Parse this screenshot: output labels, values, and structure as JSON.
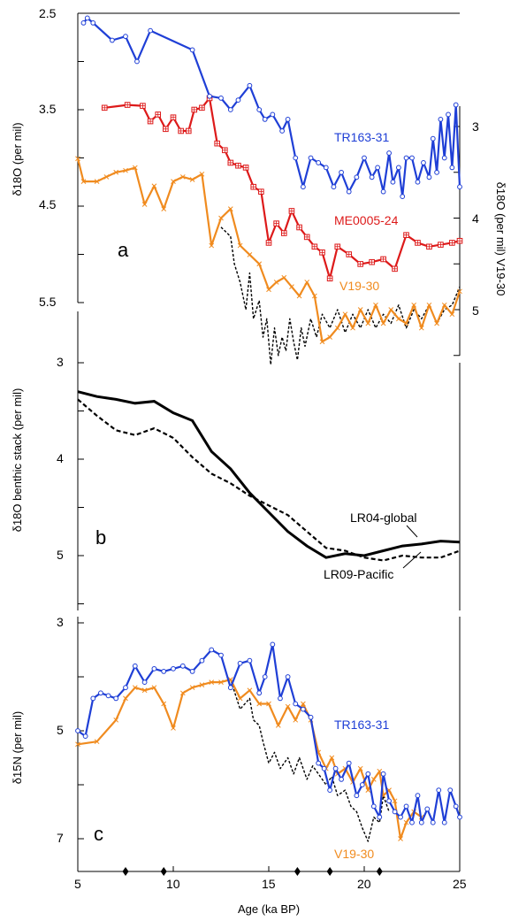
{
  "chart_data": [
    {
      "panel": "a",
      "type": "line",
      "ylabel": "δ18O (per mil)",
      "ylabel_right": "δ18O (per mil) V19-30",
      "ylim": [
        2.5,
        5.5
      ],
      "ylim_right": [
        2.5,
        5.6
      ],
      "y_inverted": true,
      "yticks": [
        "2.5",
        "3.5",
        "4.5",
        "5.5"
      ],
      "yticks_right": [
        "3",
        "4",
        "5"
      ],
      "series": [
        {
          "name": "TR163-31",
          "color": "#1f3fd6",
          "marker": "circle",
          "axis": "left",
          "x": [
            5.3,
            5.5,
            5.8,
            6.8,
            7.5,
            8.1,
            8.8,
            11.0,
            11.9,
            12.5,
            13.0,
            13.4,
            14.0,
            14.5,
            14.8,
            15.2,
            15.7,
            16.0,
            16.4,
            16.8,
            17.2,
            17.6,
            18.0,
            18.4,
            18.8,
            19.2,
            19.6,
            20.0,
            20.4,
            20.7,
            21.0,
            21.3,
            21.5,
            21.8,
            22.0,
            22.2,
            22.5,
            22.8,
            23.1,
            23.4,
            23.6,
            23.8,
            24.0,
            24.2,
            24.4,
            24.6,
            24.8,
            25.0
          ],
          "y": [
            2.6,
            2.55,
            2.6,
            2.78,
            2.74,
            3.0,
            2.68,
            2.88,
            3.36,
            3.38,
            3.5,
            3.4,
            3.25,
            3.5,
            3.6,
            3.55,
            3.72,
            3.6,
            4.0,
            4.3,
            4.0,
            4.05,
            4.1,
            4.3,
            4.15,
            4.35,
            4.2,
            4.0,
            4.2,
            4.1,
            4.35,
            3.95,
            4.25,
            4.1,
            4.4,
            4.0,
            4.0,
            4.25,
            4.05,
            4.2,
            3.8,
            4.15,
            3.6,
            4.0,
            3.55,
            4.1,
            3.45,
            4.3
          ]
        },
        {
          "name": "ME0005-24",
          "color": "#dd1a1a",
          "marker": "square",
          "axis": "left",
          "x": [
            6.4,
            7.6,
            8.4,
            8.8,
            9.2,
            9.6,
            10.0,
            10.4,
            10.8,
            11.1,
            11.5,
            11.9,
            12.3,
            12.7,
            13.0,
            13.4,
            13.8,
            14.2,
            14.6,
            15.0,
            15.4,
            15.8,
            16.2,
            16.6,
            17.0,
            17.4,
            17.8,
            18.2,
            18.6,
            19.2,
            19.8,
            20.4,
            21.0,
            21.6,
            22.2,
            22.8,
            23.4,
            24.0,
            24.6,
            25.0
          ],
          "y": [
            3.48,
            3.45,
            3.46,
            3.62,
            3.55,
            3.7,
            3.58,
            3.72,
            3.72,
            3.5,
            3.48,
            3.38,
            3.85,
            3.92,
            4.05,
            4.08,
            4.1,
            4.3,
            4.35,
            4.88,
            4.68,
            4.78,
            4.55,
            4.72,
            4.82,
            4.92,
            4.98,
            5.25,
            4.92,
            5.0,
            5.1,
            5.08,
            5.05,
            5.15,
            4.8,
            4.88,
            4.92,
            4.9,
            4.88,
            4.86
          ]
        },
        {
          "name": "V19-30",
          "color": "#f08b1f",
          "marker": "x",
          "axis": "right",
          "x": [
            5.0,
            5.3,
            6.0,
            6.5,
            7.0,
            7.5,
            8.0,
            8.5,
            9.0,
            9.5,
            10.0,
            10.5,
            11.0,
            11.5,
            12.0,
            12.5,
            13.0,
            13.5,
            14.0,
            14.5,
            15.0,
            15.4,
            15.8,
            16.2,
            16.6,
            17.0,
            17.4,
            17.8,
            18.2,
            18.6,
            19.0,
            19.4,
            19.8,
            20.2,
            20.6,
            21.0,
            21.4,
            21.8,
            22.2,
            22.6,
            23.0,
            23.4,
            23.8,
            24.2,
            24.6,
            25.0
          ],
          "y": [
            3.35,
            3.6,
            3.6,
            3.55,
            3.5,
            3.48,
            3.45,
            3.85,
            3.65,
            3.9,
            3.6,
            3.55,
            3.58,
            3.52,
            4.3,
            4.0,
            3.9,
            4.3,
            4.4,
            4.5,
            4.78,
            4.7,
            4.65,
            4.75,
            4.85,
            4.7,
            4.85,
            5.35,
            5.3,
            5.2,
            5.05,
            5.2,
            5.0,
            5.15,
            4.95,
            5.15,
            5.0,
            5.1,
            5.15,
            4.95,
            5.2,
            4.95,
            5.15,
            4.95,
            5.05,
            4.8
          ]
        },
        {
          "name": "",
          "color": "#000000",
          "marker": "none",
          "dashed": true,
          "axis": "right",
          "x": [
            12.5,
            13.0,
            13.2,
            13.5,
            13.8,
            14.0,
            14.2,
            14.5,
            14.7,
            14.9,
            15.1,
            15.3,
            15.5,
            15.7,
            15.9,
            16.1,
            16.3,
            16.5,
            16.7,
            16.9,
            17.2,
            17.5,
            17.8,
            18.2,
            18.6,
            19.0,
            19.4,
            19.8,
            20.2,
            20.6,
            21.0,
            21.4,
            21.8,
            22.2,
            22.6,
            23.0,
            23.4,
            23.8,
            24.2,
            24.6,
            25.0
          ],
          "y": [
            4.1,
            4.2,
            4.5,
            4.7,
            5.0,
            4.6,
            5.1,
            4.9,
            5.3,
            5.1,
            5.6,
            5.2,
            5.5,
            5.3,
            5.45,
            5.1,
            5.35,
            5.55,
            5.2,
            5.4,
            5.1,
            5.3,
            5.05,
            5.2,
            5.0,
            5.25,
            5.05,
            5.2,
            5.0,
            5.2,
            5.05,
            5.15,
            4.95,
            5.2,
            5.0,
            5.1,
            4.95,
            5.15,
            5.0,
            4.95,
            4.75
          ]
        }
      ],
      "labels": [
        {
          "text": "TR163-31",
          "color": "#1f3fd6"
        },
        {
          "text": "ME0005-24",
          "color": "#dd1a1a"
        },
        {
          "text": "V19-30",
          "color": "#f08b1f"
        }
      ]
    },
    {
      "panel": "b",
      "type": "line",
      "ylabel": "δ18O benthic stack (per mil)",
      "ylim": [
        3,
        5.5
      ],
      "y_inverted": true,
      "yticks": [
        "3",
        "4",
        "5"
      ],
      "series": [
        {
          "name": "LR04-global",
          "color": "#000000",
          "dashed": false,
          "x": [
            5,
            6,
            7,
            8,
            9,
            10,
            11,
            12,
            13,
            14,
            15,
            16,
            17,
            18,
            19,
            20,
            21,
            22,
            23,
            24,
            25
          ],
          "y": [
            3.3,
            3.35,
            3.38,
            3.42,
            3.4,
            3.52,
            3.6,
            3.92,
            4.1,
            4.35,
            4.55,
            4.75,
            4.9,
            5.02,
            4.98,
            5.0,
            4.95,
            4.9,
            4.88,
            4.85,
            4.86
          ]
        },
        {
          "name": "LR09-Pacific",
          "color": "#000000",
          "dashed": true,
          "x": [
            5,
            6,
            7,
            8,
            9,
            10,
            11,
            12,
            13,
            14,
            15,
            16,
            17,
            18,
            19,
            20,
            21,
            22,
            23,
            24,
            25
          ],
          "y": [
            3.38,
            3.55,
            3.7,
            3.75,
            3.68,
            3.78,
            3.98,
            4.15,
            4.25,
            4.38,
            4.48,
            4.58,
            4.75,
            4.92,
            4.95,
            5.02,
            5.05,
            5.0,
            5.02,
            5.02,
            4.95
          ]
        }
      ],
      "labels": [
        {
          "text": "LR04-global",
          "color": "#000000"
        },
        {
          "text": "LR09-Pacific",
          "color": "#000000"
        }
      ]
    },
    {
      "panel": "c",
      "type": "line",
      "ylabel": "δ15N (per mil)",
      "xlabel": "Age (ka BP)",
      "xlim": [
        5,
        25
      ],
      "xticks": [
        "5",
        "10",
        "15",
        "20",
        "25"
      ],
      "ylim": [
        2.6,
        7
      ],
      "yticks": [
        "3",
        "5",
        "7"
      ],
      "series": [
        {
          "name": "TR163-31",
          "color": "#1f3fd6",
          "marker": "circle",
          "x": [
            5.0,
            5.4,
            5.8,
            6.2,
            6.6,
            7.0,
            7.5,
            8.0,
            8.5,
            9.0,
            9.5,
            10.0,
            10.5,
            11.0,
            11.5,
            12.0,
            12.5,
            13.0,
            13.5,
            14.0,
            14.5,
            14.8,
            15.2,
            15.6,
            16.0,
            16.4,
            16.8,
            17.2,
            17.6,
            17.9,
            18.2,
            18.5,
            18.8,
            19.2,
            19.6,
            19.9,
            20.2,
            20.5,
            20.8,
            21.0,
            21.3,
            21.6,
            21.9,
            22.2,
            22.5,
            22.8,
            23.0,
            23.3,
            23.6,
            23.9,
            24.2,
            24.5,
            24.8,
            25.0
          ],
          "y": [
            5.0,
            4.9,
            5.6,
            5.7,
            5.65,
            5.6,
            5.8,
            6.2,
            5.9,
            6.15,
            6.1,
            6.15,
            6.2,
            6.1,
            6.3,
            6.5,
            6.4,
            5.8,
            6.25,
            6.3,
            5.7,
            6.0,
            6.6,
            5.6,
            6.0,
            5.5,
            5.4,
            5.25,
            4.4,
            4.3,
            3.9,
            4.3,
            4.1,
            4.4,
            3.8,
            4.0,
            4.2,
            3.6,
            3.4,
            4.2,
            3.7,
            3.5,
            3.4,
            3.6,
            3.3,
            3.8,
            3.3,
            3.55,
            3.3,
            3.9,
            3.3,
            3.9,
            3.6,
            3.4
          ]
        },
        {
          "name": "V19-30",
          "color": "#f08b1f",
          "marker": "x",
          "x": [
            5.0,
            6.0,
            7.0,
            7.5,
            8.0,
            8.5,
            9.0,
            9.5,
            10.0,
            10.5,
            11.0,
            11.5,
            12.0,
            12.5,
            13.0,
            13.5,
            14.0,
            14.5,
            15.0,
            15.5,
            16.0,
            16.4,
            16.8,
            17.2,
            17.6,
            18.0,
            18.3,
            18.6,
            19.0,
            19.4,
            19.8,
            20.2,
            20.5,
            20.8,
            21.0,
            21.3,
            21.6,
            21.9,
            22.2,
            22.6,
            23.0
          ],
          "y": [
            4.75,
            4.8,
            5.2,
            5.6,
            5.8,
            5.75,
            5.8,
            5.5,
            5.05,
            5.7,
            5.8,
            5.85,
            5.9,
            5.9,
            5.95,
            5.6,
            5.75,
            5.5,
            5.5,
            5.1,
            5.45,
            5.2,
            5.5,
            5.2,
            4.6,
            4.3,
            4.5,
            4.2,
            4.3,
            4.05,
            4.3,
            3.9,
            4.1,
            4.25,
            3.8,
            3.9,
            3.7,
            3.0,
            3.3,
            3.5,
            3.4
          ]
        },
        {
          "name": "",
          "color": "#000000",
          "marker": "none",
          "dashed": true,
          "x": [
            5.0,
            6.0,
            7.0,
            7.5,
            8.0,
            8.5,
            9.0,
            9.5,
            10.0,
            10.5,
            11.0,
            11.5,
            12.0,
            12.5,
            13.0,
            13.5,
            14.0,
            14.2,
            14.5,
            14.7,
            15.0,
            15.3,
            15.6,
            16.0,
            16.3,
            16.6,
            17.0,
            17.3,
            17.6,
            18.0,
            18.3,
            18.6,
            19.0,
            19.3,
            19.6,
            19.9,
            20.2,
            20.5,
            20.8,
            21.0,
            21.3
          ],
          "y": [
            4.75,
            4.8,
            5.2,
            5.6,
            5.8,
            5.75,
            5.8,
            5.5,
            5.05,
            5.7,
            5.8,
            5.85,
            5.9,
            5.9,
            5.95,
            5.4,
            5.6,
            5.2,
            5.1,
            4.8,
            4.4,
            4.6,
            4.3,
            4.5,
            4.2,
            4.5,
            4.1,
            4.35,
            4.2,
            4.0,
            4.15,
            3.8,
            3.9,
            3.6,
            3.5,
            3.2,
            2.95,
            3.4,
            3.3,
            3.8,
            3.5
          ]
        }
      ],
      "tie_points_x": [
        7.5,
        9.5,
        16.5,
        18.2,
        20.8
      ],
      "labels": [
        {
          "text": "TR163-31",
          "color": "#1f3fd6"
        },
        {
          "text": "V19-30",
          "color": "#f08b1f"
        }
      ]
    }
  ],
  "panels": {
    "a": {
      "letter": "a"
    },
    "b": {
      "letter": "b"
    },
    "c": {
      "letter": "c"
    }
  }
}
